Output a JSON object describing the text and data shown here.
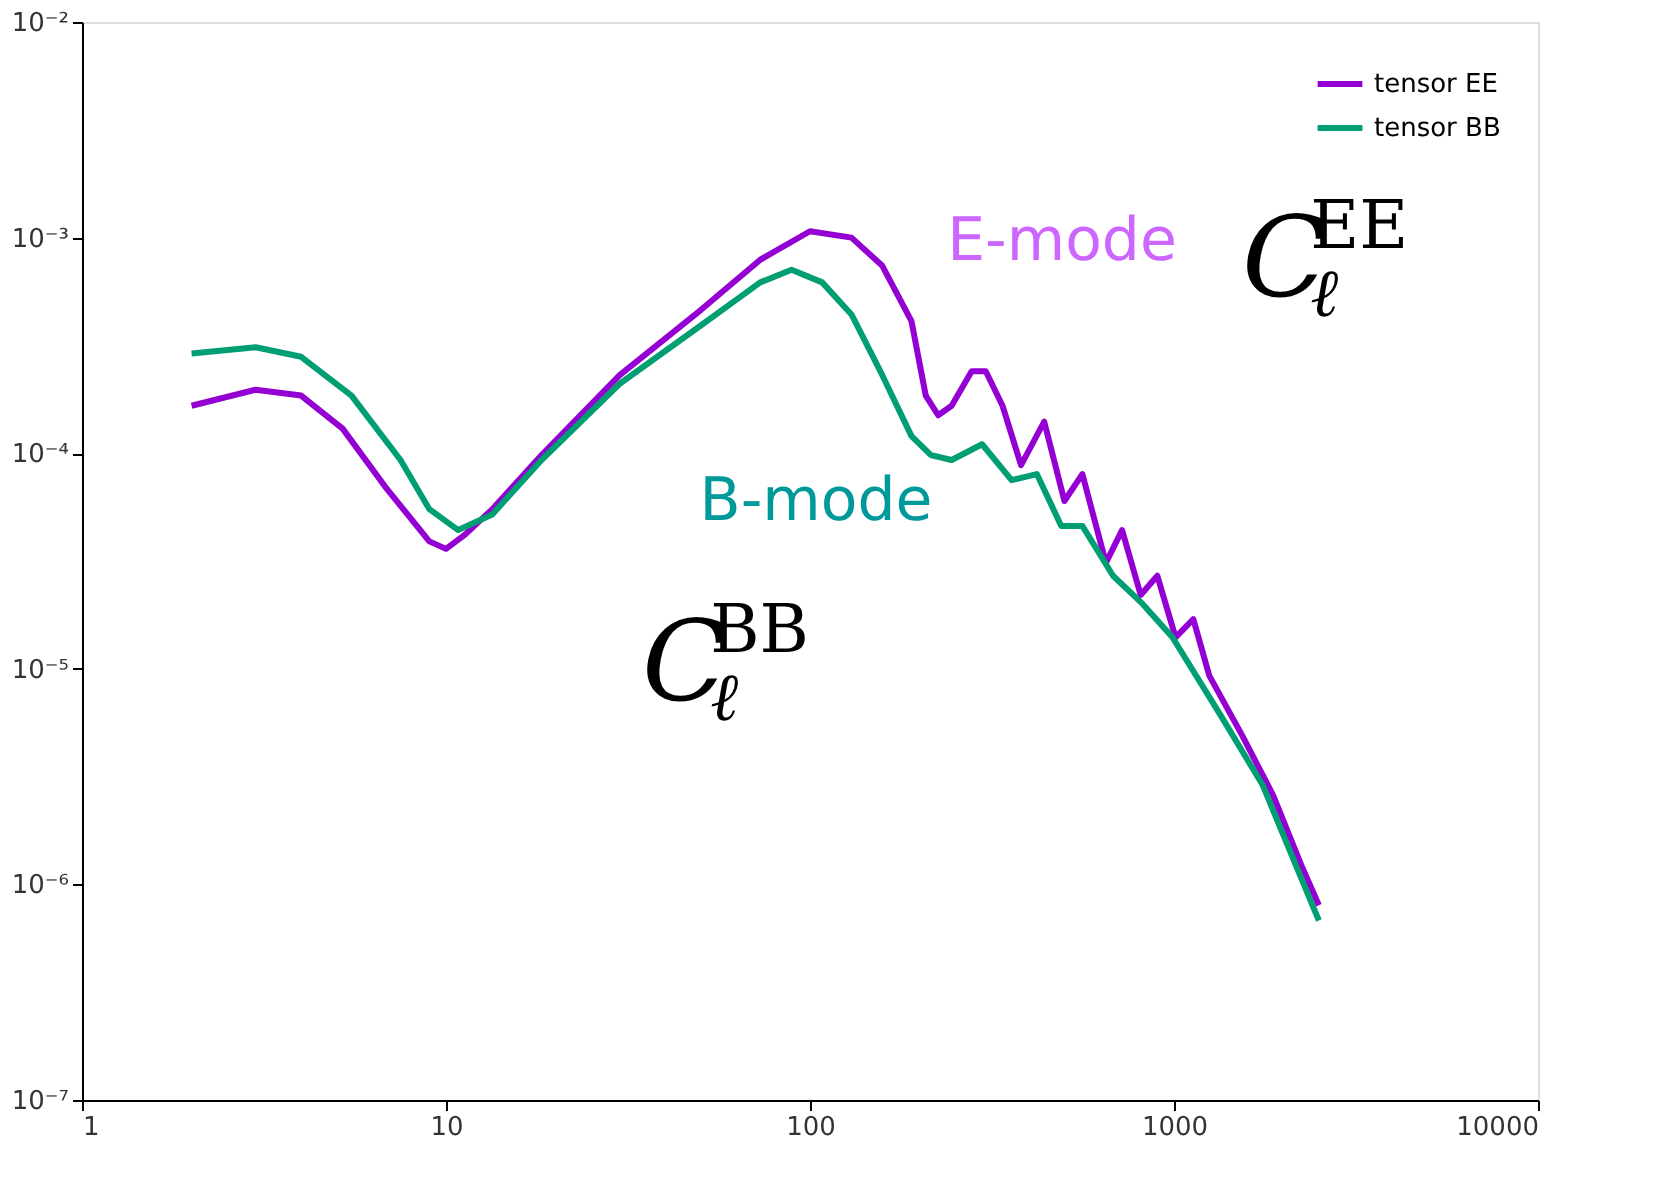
{
  "chart_data": {
    "type": "line",
    "log": "xy",
    "xlim": [
      1,
      10000
    ],
    "ylim": [
      1e-07,
      0.01
    ],
    "xticks": [
      1,
      10,
      100,
      {
        "value": 1000,
        "label": "1000"
      },
      {
        "value": 10000,
        "label": "10000"
      }
    ],
    "yticks": [
      {
        "value": 1e-07,
        "label": "10⁻⁷"
      },
      {
        "value": 1e-06,
        "label": "10⁻⁶"
      },
      {
        "value": 1e-05,
        "label": "10⁻⁵"
      },
      {
        "value": 0.0001,
        "label": "10⁻⁴"
      },
      {
        "value": 0.001,
        "label": "10⁻³"
      },
      {
        "value": 0.01,
        "label": "10⁻²"
      }
    ],
    "grid": false,
    "legend": "top right",
    "marker": "none",
    "line_style": "solid",
    "series": [
      {
        "name": "tensor EE",
        "color": "#9400d3",
        "x": [
          2,
          3,
          4,
          5.2,
          6.8,
          9,
          10,
          11.3,
          13.4,
          18.3,
          30,
          50,
          73,
          100,
          130,
          158,
          190,
          208,
          225,
          245,
          278,
          304,
          338,
          380,
          440,
          500,
          560,
          650,
          720,
          810,
          900,
          1010,
          1130,
          1250,
          1540,
          1870,
          2250,
          2500
        ],
        "values": [
          0.000166,
          0.000197,
          0.000185,
          0.00013,
          7e-05,
          3.9e-05,
          3.6e-05,
          4.2e-05,
          5.5e-05,
          9.8e-05,
          0.00023,
          0.00046,
          0.00079,
          0.00107,
          0.001,
          0.00074,
          0.00041,
          0.000185,
          0.00015,
          0.000166,
          0.00024,
          0.00024,
          0.000166,
          8.8e-05,
          0.00014,
          6e-05,
          8e-05,
          3.1e-05,
          4.4e-05,
          2.2e-05,
          2.7e-05,
          1.4e-05,
          1.7e-05,
          9.3e-06,
          4.9e-06,
          2.6e-06,
          1.2e-06,
          8e-07
        ]
      },
      {
        "name": "tensor BB",
        "color": "#009e73",
        "x": [
          2,
          3,
          4,
          5.5,
          7.5,
          9,
          10.8,
          13.4,
          18.3,
          30,
          50,
          73,
          89,
          108,
          130,
          158,
          190,
          215,
          245,
          297,
          358,
          420,
          490,
          560,
          680,
          820,
          990,
          1350,
          1750,
          2500
        ],
        "values": [
          0.00029,
          0.00031,
          0.00028,
          0.000185,
          9.3e-05,
          5.5e-05,
          4.4e-05,
          5.2e-05,
          9.3e-05,
          0.00021,
          0.00039,
          0.00062,
          0.00071,
          0.00062,
          0.00044,
          0.00023,
          0.00012,
          9.8e-05,
          9.3e-05,
          0.00011,
          7.5e-05,
          8e-05,
          4.6e-05,
          4.6e-05,
          2.7e-05,
          2e-05,
          1.4e-05,
          6e-06,
          2.9e-06,
          6.8e-07
        ]
      }
    ],
    "annotations": [
      "E-mode",
      "C$_{ℓ}$$^{EE}$",
      "B-mode",
      "C$_{ℓ}$$^{BB}$"
    ]
  }
}
